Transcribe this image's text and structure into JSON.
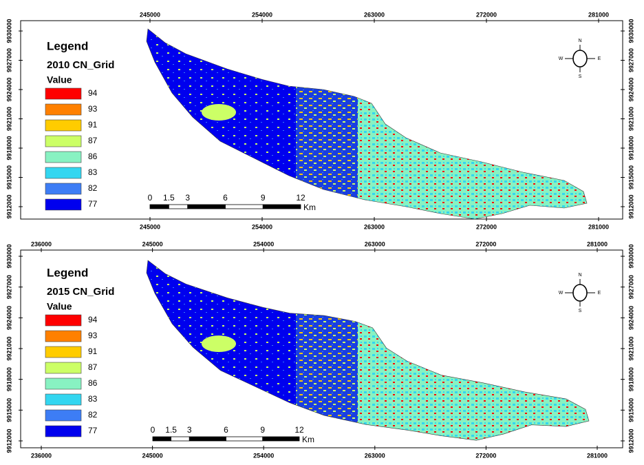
{
  "maps": [
    {
      "legend_title": "Legend",
      "layer_name": "2010 CN_Grid",
      "field": "Value",
      "classes": [
        {
          "label": "94",
          "color": "#ff0000"
        },
        {
          "label": "93",
          "color": "#ff8000"
        },
        {
          "label": "91",
          "color": "#ffcc00"
        },
        {
          "label": "87",
          "color": "#ccff66"
        },
        {
          "label": "86",
          "color": "#88f2c2"
        },
        {
          "label": "83",
          "color": "#33d6f0"
        },
        {
          "label": "82",
          "color": "#3d7df5"
        },
        {
          "label": "77",
          "color": "#0000ee"
        }
      ],
      "top_labels": [
        "245000",
        "254000",
        "263000",
        "272000",
        "281000"
      ],
      "bottom_labels": [
        "245000",
        "254000",
        "263000",
        "272000",
        "281000"
      ],
      "left_labels": [
        "9930000",
        "9927000",
        "9924000",
        "9921000",
        "9918000",
        "9915000",
        "9912000"
      ],
      "right_labels": [
        "9930000",
        "9927000",
        "9924000",
        "9921000",
        "9918000",
        "9915000",
        "9912000"
      ],
      "scale_labels": [
        "0",
        "1.5",
        "3",
        "6",
        "9",
        "12"
      ],
      "scale_unit": "Km",
      "compass": {
        "n": "N",
        "s": "S",
        "e": "E",
        "w": "W"
      }
    },
    {
      "legend_title": "Legend",
      "layer_name": "2015 CN_Grid",
      "field": "Value",
      "classes": [
        {
          "label": "94",
          "color": "#ff0000"
        },
        {
          "label": "93",
          "color": "#ff8000"
        },
        {
          "label": "91",
          "color": "#ffcc00"
        },
        {
          "label": "87",
          "color": "#ccff66"
        },
        {
          "label": "86",
          "color": "#88f2c2"
        },
        {
          "label": "83",
          "color": "#33d6f0"
        },
        {
          "label": "82",
          "color": "#3d7df5"
        },
        {
          "label": "77",
          "color": "#0000ee"
        }
      ],
      "top_labels": [
        "236000",
        "245000",
        "254000",
        "263000",
        "272000",
        "281000"
      ],
      "bottom_labels": [
        "236000",
        "245000",
        "254000",
        "263000",
        "272000",
        "281000"
      ],
      "left_labels": [
        "9930000",
        "9927000",
        "9924000",
        "9921000",
        "9918000",
        "9915000",
        "9912000"
      ],
      "right_labels": [
        "9930000",
        "9927000",
        "9924000",
        "9921000",
        "9918000",
        "9915000",
        "9912000"
      ],
      "scale_labels": [
        "0",
        "1.5",
        "3",
        "6",
        "9",
        "12"
      ],
      "scale_unit": "Km",
      "compass": {
        "n": "N",
        "s": "S",
        "e": "E",
        "w": "W"
      }
    }
  ]
}
